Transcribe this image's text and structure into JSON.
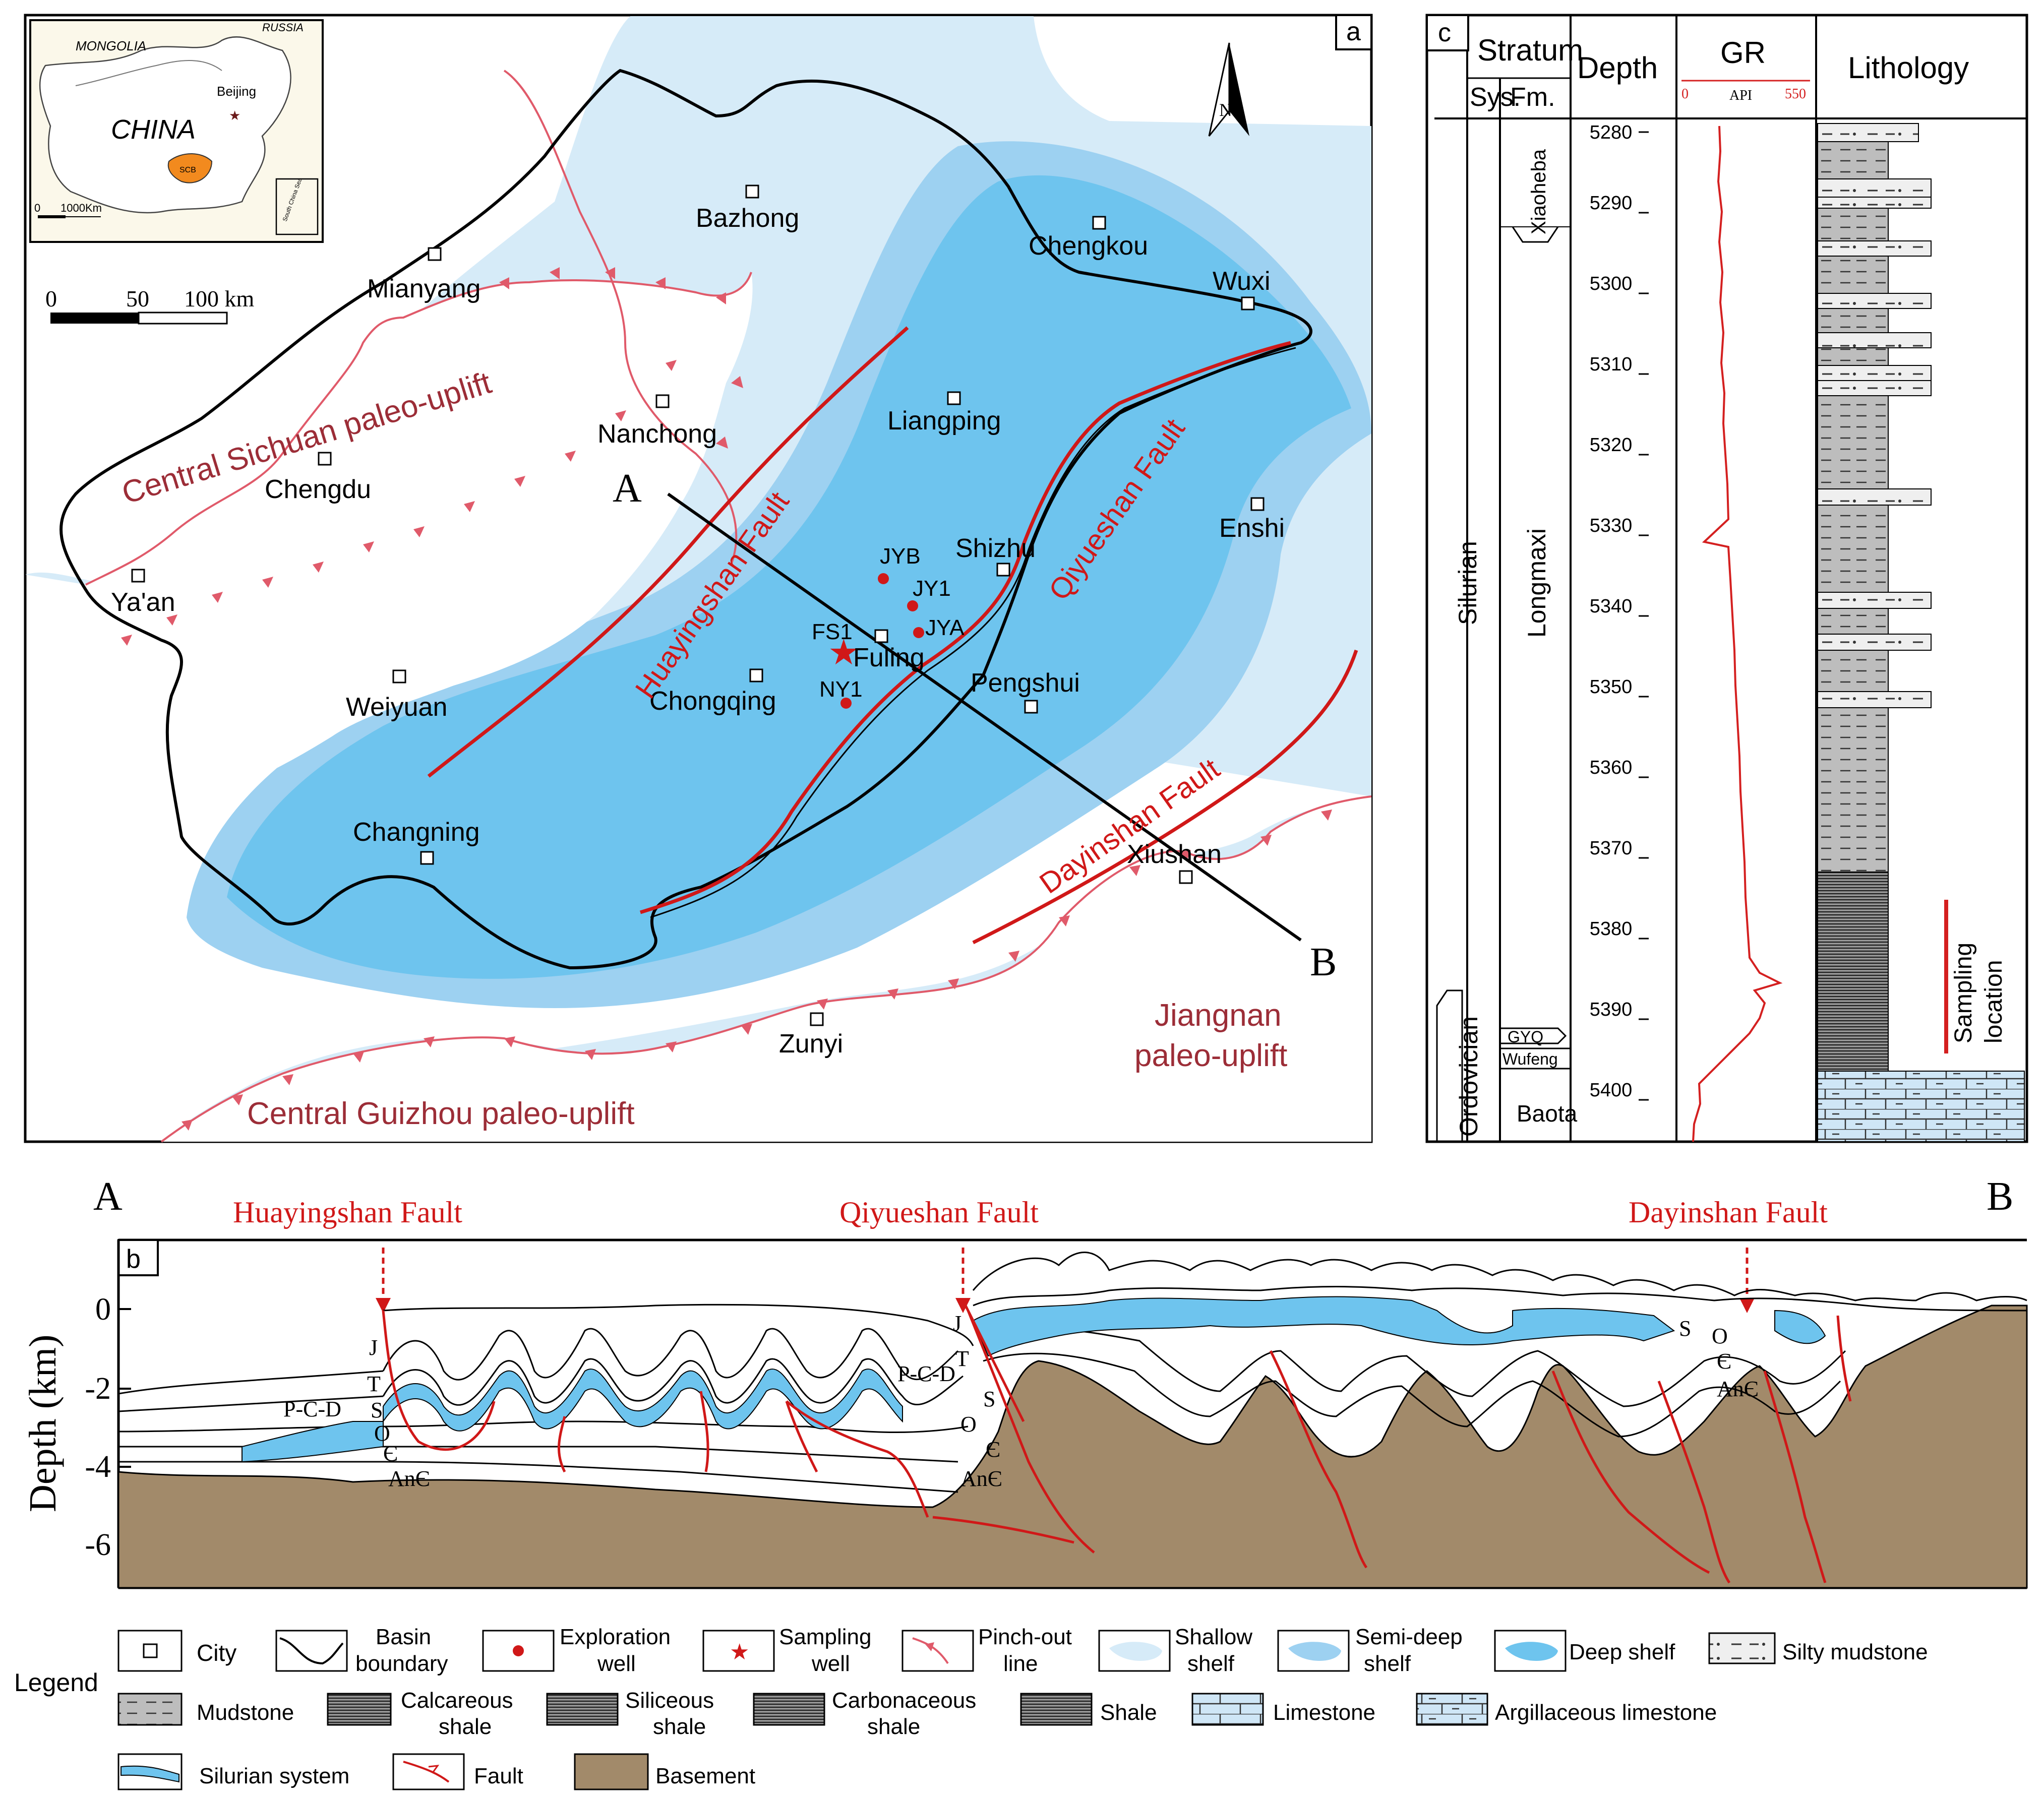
{
  "colors": {
    "shallow": "#d6ebf8",
    "semideep": "#9dd1f1",
    "deep": "#6ec4ee",
    "basement": "#a28a6a",
    "fault": "#e0202a",
    "uplift_text": "#9c2d37",
    "pinchout": "#e05a6a",
    "gr_curve": "#d42020"
  },
  "panel_a": {
    "label": "a",
    "inset": {
      "mongolia": "MONGOLIA",
      "russia": "RUSSIA",
      "china": "CHINA",
      "beijing": "Beijing",
      "scb": "SCB",
      "scale": "1000Km",
      "zero": "0",
      "south_sea": "South China Sea"
    },
    "scale": {
      "t0": "0",
      "t50": "50",
      "t100": "100 km"
    },
    "north": "N",
    "cities": [
      "Bazhong",
      "Mianyang",
      "Chengkou",
      "Wuxi",
      "Nanchong",
      "Liangping",
      "Chengdu",
      "Enshi",
      "Shizhu",
      "Ya'an",
      "Weiyuan",
      "Chongqing",
      "Pengshui",
      "Changning",
      "Xiushan",
      "Zunyi"
    ],
    "wells": [
      "JYB",
      "JY1",
      "JYA",
      "NY1"
    ],
    "sampling": "FS1",
    "fuling": "Fuling",
    "faults": [
      "Huayingshan Fault",
      "Qiyueshan Fault",
      "Dayinshan Fault"
    ],
    "uplifts": [
      "Central  Sichuan paleo-uplift",
      "Central  Guizhou paleo-uplift",
      "Jiangnan",
      "paleo-uplift"
    ],
    "section_ends": [
      "A",
      "B"
    ]
  },
  "panel_c": {
    "label": "c",
    "headers": {
      "stratum": "Stratum",
      "sys": "Sys.",
      "fm": "Fm.",
      "depth": "Depth",
      "gr": "GR",
      "gr_min": "0",
      "gr_unit": "API",
      "gr_max": "550",
      "lithology": "Lithology"
    },
    "systems": [
      "Silurian",
      "Ordovician"
    ],
    "formations": [
      "Xiaoheba",
      "Longmaxi",
      "GYQ",
      "Wufeng",
      "Baota"
    ],
    "depth_ticks": [
      "5280",
      "5290",
      "5300",
      "5310",
      "5320",
      "5330",
      "5340",
      "5350",
      "5360",
      "5370",
      "5380",
      "5390",
      "5400"
    ],
    "sampling_label": [
      "Sampling",
      "location"
    ]
  },
  "panel_b": {
    "label": "b",
    "ends": [
      "A",
      "B"
    ],
    "faults": [
      "Huayingshan Fault",
      "Qiyueshan Fault",
      "Dayinshan Fault"
    ],
    "ylabel": "Depth (km)",
    "yticks": [
      "0",
      "-2",
      "-4",
      "-6"
    ],
    "strata": [
      "J",
      "T",
      "P-C-D",
      "S",
      "O",
      "Є",
      "AnЄ",
      "J",
      "T",
      "P-C-D",
      "S",
      "O",
      "Є",
      "AnЄ",
      "S",
      "O",
      "Є",
      "AnЄ"
    ]
  },
  "legend": {
    "title": "Legend",
    "items": [
      {
        "name": "legend-city",
        "label": [
          "City"
        ]
      },
      {
        "name": "legend-basin",
        "label": [
          "Basin",
          "boundary"
        ]
      },
      {
        "name": "legend-exploration",
        "label": [
          "Exploration",
          "well"
        ]
      },
      {
        "name": "legend-sampling",
        "label": [
          "Sampling",
          "well"
        ]
      },
      {
        "name": "legend-pinchout",
        "label": [
          "Pinch-out",
          "line"
        ]
      },
      {
        "name": "legend-shallow",
        "label": [
          "Shallow",
          "shelf"
        ]
      },
      {
        "name": "legend-semideep",
        "label": [
          "Semi-deep",
          "shelf"
        ]
      },
      {
        "name": "legend-deep",
        "label": [
          "Deep shelf"
        ]
      },
      {
        "name": "legend-silty",
        "label": [
          "Silty mudstone"
        ]
      },
      {
        "name": "legend-mudstone",
        "label": [
          "Mudstone"
        ]
      },
      {
        "name": "legend-calc",
        "label": [
          "Calcareous",
          "shale"
        ]
      },
      {
        "name": "legend-sili",
        "label": [
          "Siliceous",
          "shale"
        ]
      },
      {
        "name": "legend-carb",
        "label": [
          "Carbonaceous",
          "shale"
        ]
      },
      {
        "name": "legend-shale",
        "label": [
          "Shale"
        ]
      },
      {
        "name": "legend-limestone",
        "label": [
          "Limestone"
        ]
      },
      {
        "name": "legend-arglime",
        "label": [
          "Argillaceous limestone"
        ]
      },
      {
        "name": "legend-silurian",
        "label": [
          "Silurian system"
        ]
      },
      {
        "name": "legend-fault",
        "label": [
          "Fault"
        ]
      },
      {
        "name": "legend-basement",
        "label": [
          "Basement"
        ]
      }
    ]
  }
}
